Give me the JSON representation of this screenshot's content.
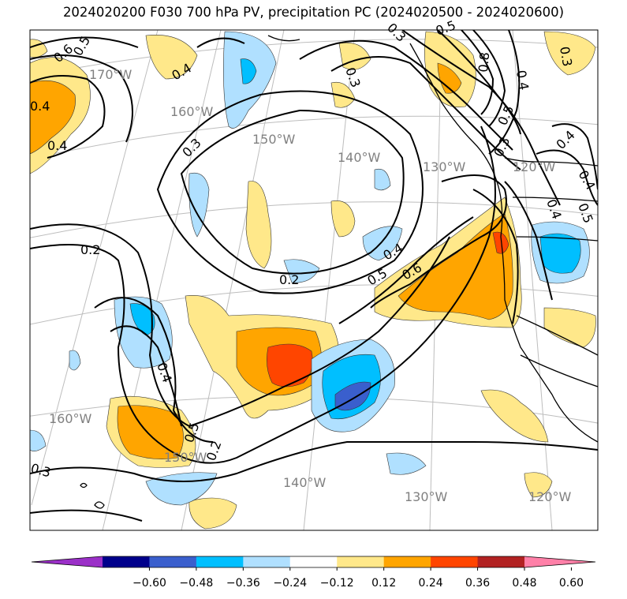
{
  "title": "2024020200 F030 700 hPa PV, precipitation PC (2024020500 - 2024020600)",
  "map": {
    "region": "Northeast Pacific / North America west coast",
    "colormap": {
      "levels": [
        -0.6,
        -0.48,
        -0.36,
        -0.24,
        -0.12,
        0.12,
        0.24,
        0.36,
        0.48,
        0.6
      ],
      "colors": [
        "#9b30c8",
        "#00008b",
        "#3a5fcd",
        "#00bfff",
        "#b0e0ff",
        "#ffffff",
        "#ffe88a",
        "#ffa500",
        "#ff4500",
        "#b22222",
        "#ff80a8"
      ],
      "extend": "both"
    },
    "longitude_labels": [
      "170°W",
      "160°W",
      "150°W",
      "140°W",
      "130°W",
      "120°W",
      "160°W",
      "150°W",
      "140°W",
      "130°W",
      "120°W"
    ],
    "contour_labels": [
      "0.6",
      "0.5",
      "0.4",
      "0.4",
      "0.4",
      "0.3",
      "0.3",
      "0.2",
      "0.2",
      "0.4",
      "0.5",
      "0.6",
      "0.5",
      "0.3",
      "0.8",
      "0.4",
      "0.5",
      "0.4",
      "0.3",
      "0.4",
      "0.5",
      "0.2",
      "0.3",
      "0.3",
      "0.4",
      "0.5",
      "0.4"
    ]
  },
  "colorbar": {
    "tick_labels": [
      "−0.60",
      "−0.48",
      "−0.36",
      "−0.24",
      "−0.12",
      "0.12",
      "0.24",
      "0.36",
      "0.48",
      "0.60"
    ]
  }
}
